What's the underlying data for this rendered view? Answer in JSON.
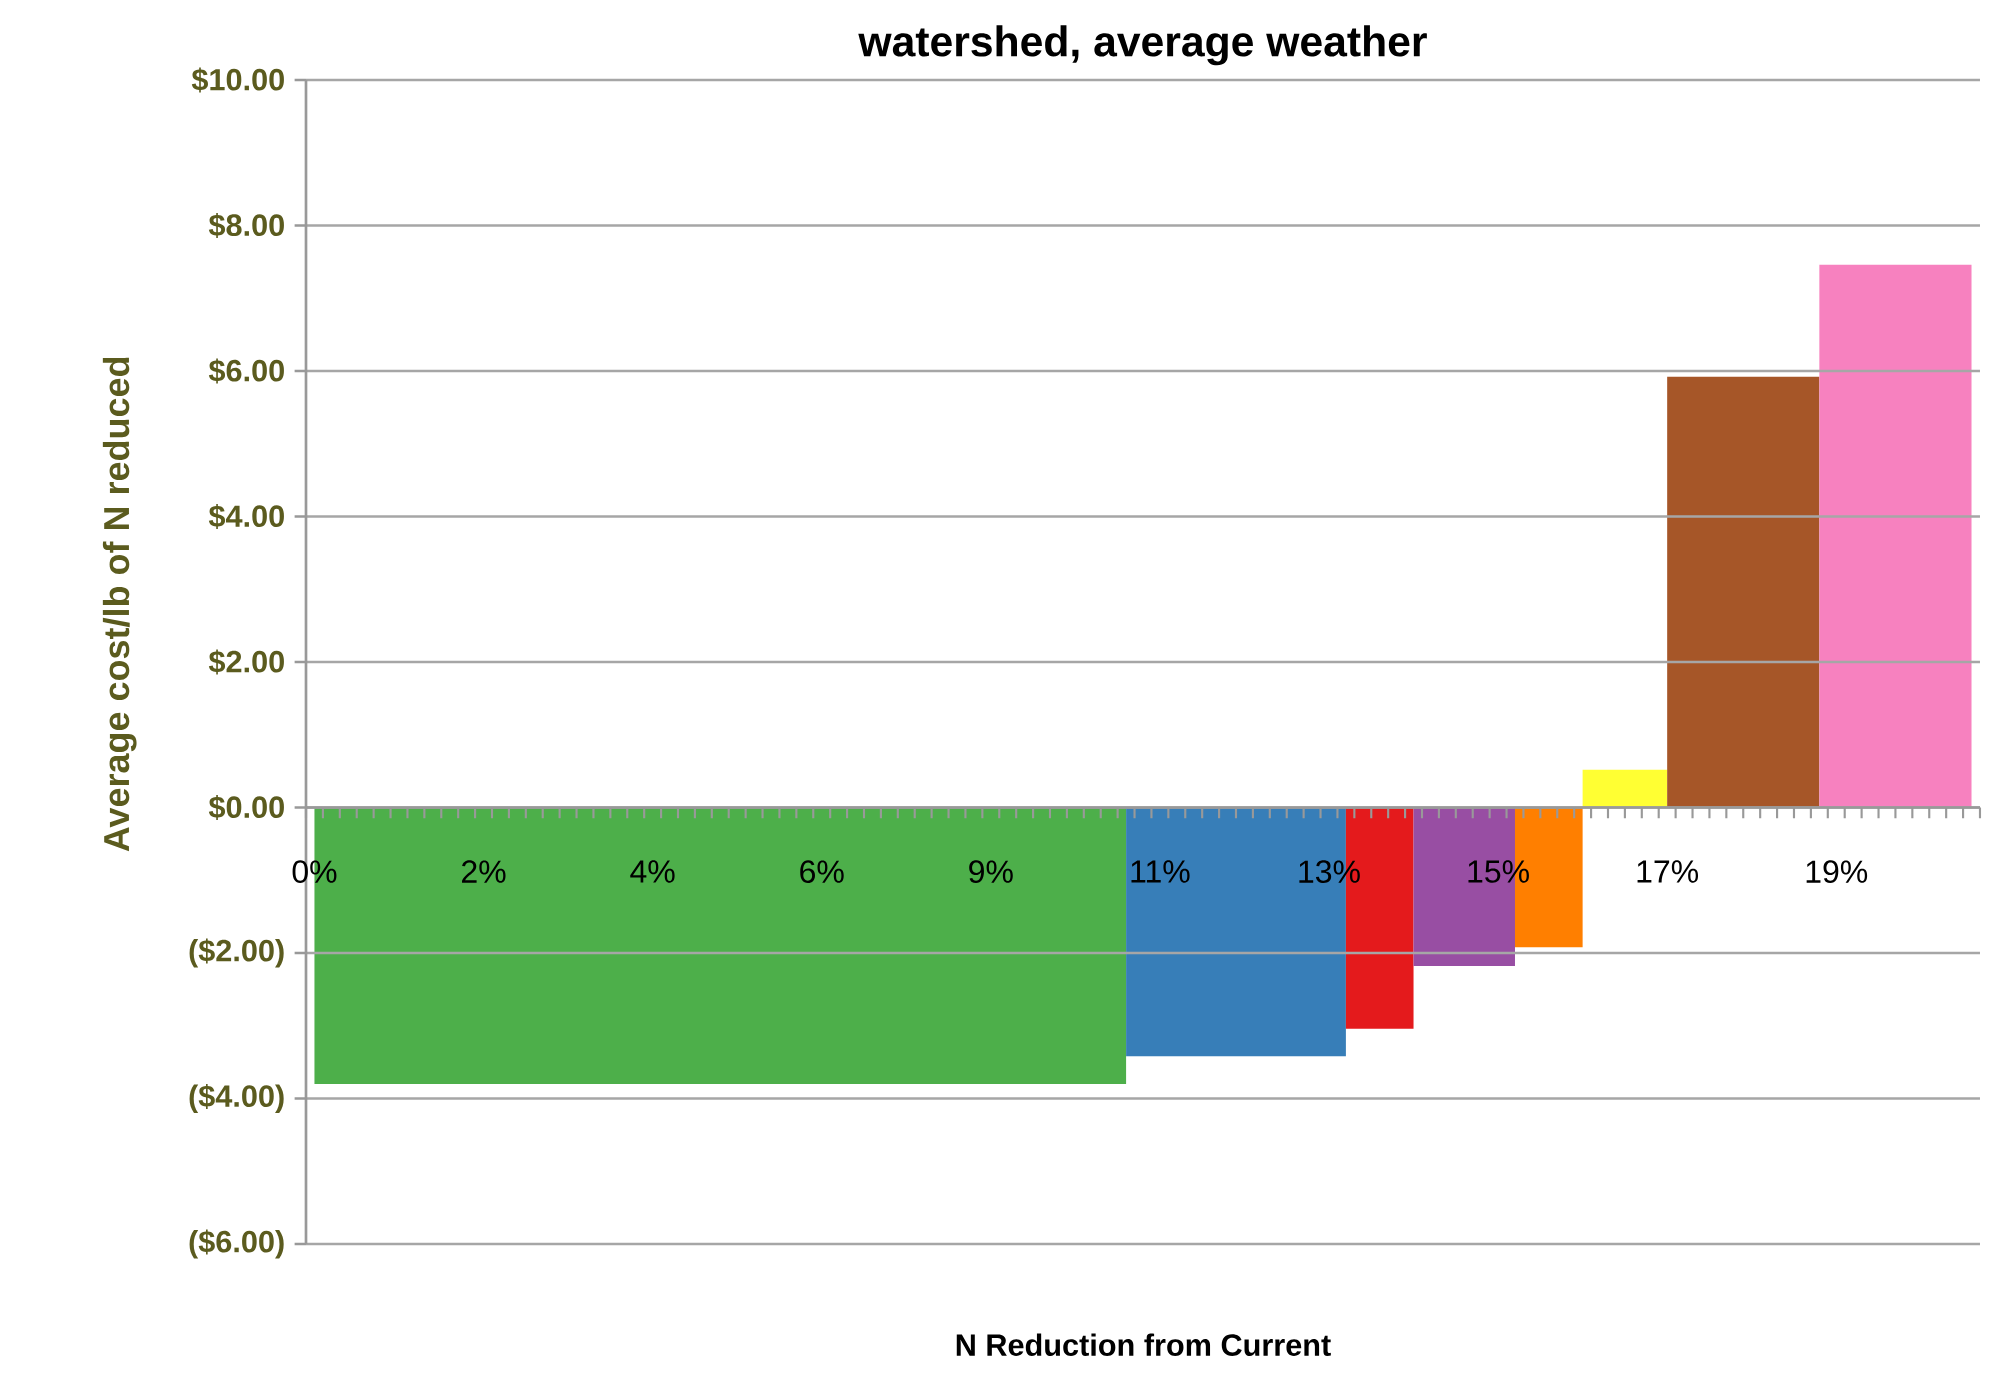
{
  "chart_data": {
    "type": "area",
    "title": "watershed, average weather",
    "xlabel": "N Reduction from Current",
    "ylabel": "Average cost/lb of N reduced",
    "categories": [
      "0%",
      null,
      null,
      null,
      null,
      null,
      null,
      null,
      null,
      null,
      "2%",
      null,
      null,
      null,
      null,
      null,
      null,
      null,
      null,
      null,
      "4%",
      null,
      null,
      null,
      null,
      null,
      null,
      null,
      null,
      null,
      "6%",
      null,
      null,
      null,
      null,
      null,
      null,
      null,
      null,
      null,
      "9%",
      null,
      null,
      null,
      null,
      null,
      null,
      null,
      null,
      null,
      "11%",
      null,
      null,
      null,
      null,
      null,
      null,
      null,
      null,
      null,
      "13%",
      null,
      null,
      null,
      null,
      null,
      null,
      null,
      null,
      null,
      "15%",
      null,
      null,
      null,
      null,
      null,
      null,
      null,
      null,
      null,
      "17%",
      null,
      null,
      null,
      null,
      null,
      null,
      null,
      null,
      null,
      "19%",
      null,
      null,
      null,
      null,
      null,
      null,
      null,
      null
    ],
    "ylim": [
      -6,
      10
    ],
    "yticks": [
      {
        "value": -6,
        "label": "($6.00)"
      },
      {
        "value": -4,
        "label": "($4.00)"
      },
      {
        "value": -2,
        "label": "($2.00)"
      },
      {
        "value": 0,
        "label": "$0.00"
      },
      {
        "value": 2,
        "label": "$2.00"
      },
      {
        "value": 4,
        "label": "$4.00"
      },
      {
        "value": 6,
        "label": "$6.00"
      },
      {
        "value": 8,
        "label": "$8.00"
      },
      {
        "value": 10,
        "label": "$10.00"
      }
    ],
    "grid": "y",
    "series": [
      {
        "color": "#4daf4a",
        "values": [
          -3.8,
          -3.8,
          -3.8,
          -3.8,
          -3.8,
          -3.8,
          -3.8,
          -3.8,
          -3.8,
          -3.8,
          -3.8,
          -3.8,
          -3.8,
          -3.8,
          -3.8,
          -3.8,
          -3.8,
          -3.8,
          -3.8,
          -3.8,
          -3.8,
          -3.8,
          -3.8,
          -3.8,
          -3.8,
          -3.8,
          -3.8,
          -3.8,
          -3.8,
          -3.8,
          -3.8,
          -3.8,
          -3.8,
          -3.8,
          -3.8,
          -3.8,
          -3.8,
          -3.8,
          -3.8,
          -3.8,
          -3.8,
          -3.8,
          -3.8,
          -3.8,
          -3.8,
          -3.8,
          -3.8,
          -3.8,
          -3.8,
          null,
          null,
          null,
          null,
          null,
          null,
          null,
          null,
          null,
          null,
          null,
          null,
          null,
          null,
          null,
          null,
          null,
          null,
          null,
          null,
          null,
          null,
          null,
          null,
          null,
          null,
          null,
          null,
          null,
          null,
          null,
          null,
          null,
          null,
          null,
          null,
          null,
          null,
          null,
          null,
          null,
          null,
          null,
          null,
          null,
          null,
          null,
          null,
          null,
          null
        ]
      },
      {
        "color": "#377eb8",
        "values": [
          null,
          null,
          null,
          null,
          null,
          null,
          null,
          null,
          null,
          null,
          null,
          null,
          null,
          null,
          null,
          null,
          null,
          null,
          null,
          null,
          null,
          null,
          null,
          null,
          null,
          null,
          null,
          null,
          null,
          null,
          null,
          null,
          null,
          null,
          null,
          null,
          null,
          null,
          null,
          null,
          null,
          null,
          null,
          null,
          null,
          null,
          null,
          null,
          -3.42,
          -3.42,
          -3.42,
          -3.42,
          -3.42,
          -3.42,
          -3.42,
          -3.42,
          -3.42,
          -3.42,
          -3.42,
          -3.42,
          -3.42,
          -3.42,
          null,
          null,
          null,
          null,
          null,
          null,
          null,
          null,
          null,
          null,
          null,
          null,
          null,
          null,
          null,
          null,
          null,
          null,
          null,
          null,
          null,
          null,
          null,
          null,
          null,
          null,
          null,
          null,
          null,
          null,
          null,
          null,
          null,
          null,
          null,
          null,
          null
        ]
      },
      {
        "color": "#e41a1c",
        "values": [
          null,
          null,
          null,
          null,
          null,
          null,
          null,
          null,
          null,
          null,
          null,
          null,
          null,
          null,
          null,
          null,
          null,
          null,
          null,
          null,
          null,
          null,
          null,
          null,
          null,
          null,
          null,
          null,
          null,
          null,
          null,
          null,
          null,
          null,
          null,
          null,
          null,
          null,
          null,
          null,
          null,
          null,
          null,
          null,
          null,
          null,
          null,
          null,
          null,
          null,
          null,
          null,
          null,
          null,
          null,
          null,
          null,
          null,
          null,
          null,
          null,
          -3.04,
          -3.04,
          -3.04,
          -3.04,
          -3.04,
          null,
          null,
          null,
          null,
          null,
          null,
          null,
          null,
          null,
          null,
          null,
          null,
          null,
          null,
          null,
          null,
          null,
          null,
          null,
          null,
          null,
          null,
          null,
          null,
          null,
          null,
          null,
          null,
          null,
          null,
          null,
          null,
          null
        ]
      },
      {
        "color": "#984ea3",
        "values": [
          null,
          null,
          null,
          null,
          null,
          null,
          null,
          null,
          null,
          null,
          null,
          null,
          null,
          null,
          null,
          null,
          null,
          null,
          null,
          null,
          null,
          null,
          null,
          null,
          null,
          null,
          null,
          null,
          null,
          null,
          null,
          null,
          null,
          null,
          null,
          null,
          null,
          null,
          null,
          null,
          null,
          null,
          null,
          null,
          null,
          null,
          null,
          null,
          null,
          null,
          null,
          null,
          null,
          null,
          null,
          null,
          null,
          null,
          null,
          null,
          null,
          null,
          null,
          null,
          null,
          -2.18,
          -2.18,
          -2.18,
          -2.18,
          -2.18,
          -2.18,
          -2.18,
          null,
          null,
          null,
          null,
          null,
          null,
          null,
          null,
          null,
          null,
          null,
          null,
          null,
          null,
          null,
          null,
          null,
          null,
          null,
          null,
          null,
          null,
          null,
          null,
          null,
          null,
          null
        ]
      },
      {
        "color": "#ff7f00",
        "values": [
          null,
          null,
          null,
          null,
          null,
          null,
          null,
          null,
          null,
          null,
          null,
          null,
          null,
          null,
          null,
          null,
          null,
          null,
          null,
          null,
          null,
          null,
          null,
          null,
          null,
          null,
          null,
          null,
          null,
          null,
          null,
          null,
          null,
          null,
          null,
          null,
          null,
          null,
          null,
          null,
          null,
          null,
          null,
          null,
          null,
          null,
          null,
          null,
          null,
          null,
          null,
          null,
          null,
          null,
          null,
          null,
          null,
          null,
          null,
          null,
          null,
          null,
          null,
          null,
          null,
          null,
          null,
          null,
          null,
          null,
          null,
          -1.92,
          -1.92,
          -1.92,
          -1.92,
          -1.92,
          null,
          null,
          null,
          null,
          null,
          null,
          null,
          null,
          null,
          null,
          null,
          null,
          null,
          null,
          null,
          null,
          null,
          null,
          null,
          null,
          null,
          null,
          null
        ]
      },
      {
        "color": "#ffff33",
        "values": [
          null,
          null,
          null,
          null,
          null,
          null,
          null,
          null,
          null,
          null,
          null,
          null,
          null,
          null,
          null,
          null,
          null,
          null,
          null,
          null,
          null,
          null,
          null,
          null,
          null,
          null,
          null,
          null,
          null,
          null,
          null,
          null,
          null,
          null,
          null,
          null,
          null,
          null,
          null,
          null,
          null,
          null,
          null,
          null,
          null,
          null,
          null,
          null,
          null,
          null,
          null,
          null,
          null,
          null,
          null,
          null,
          null,
          null,
          null,
          null,
          null,
          null,
          null,
          null,
          null,
          null,
          null,
          null,
          null,
          null,
          null,
          null,
          null,
          null,
          null,
          0.52,
          0.52,
          0.52,
          0.52,
          0.52,
          0.52,
          null,
          null,
          null,
          null,
          null,
          null,
          null,
          null,
          null,
          null,
          null,
          null,
          null,
          null,
          null,
          null,
          null,
          null
        ]
      },
      {
        "color": "#a65628",
        "values": [
          null,
          null,
          null,
          null,
          null,
          null,
          null,
          null,
          null,
          null,
          null,
          null,
          null,
          null,
          null,
          null,
          null,
          null,
          null,
          null,
          null,
          null,
          null,
          null,
          null,
          null,
          null,
          null,
          null,
          null,
          null,
          null,
          null,
          null,
          null,
          null,
          null,
          null,
          null,
          null,
          null,
          null,
          null,
          null,
          null,
          null,
          null,
          null,
          null,
          null,
          null,
          null,
          null,
          null,
          null,
          null,
          null,
          null,
          null,
          null,
          null,
          null,
          null,
          null,
          null,
          null,
          null,
          null,
          null,
          null,
          null,
          null,
          null,
          null,
          null,
          null,
          null,
          null,
          null,
          null,
          5.92,
          5.92,
          5.92,
          5.92,
          5.92,
          5.92,
          5.92,
          5.92,
          5.92,
          5.92,
          null,
          null,
          null,
          null,
          null,
          null,
          null,
          null,
          null
        ]
      },
      {
        "color": "#f781bf",
        "values": [
          null,
          null,
          null,
          null,
          null,
          null,
          null,
          null,
          null,
          null,
          null,
          null,
          null,
          null,
          null,
          null,
          null,
          null,
          null,
          null,
          null,
          null,
          null,
          null,
          null,
          null,
          null,
          null,
          null,
          null,
          null,
          null,
          null,
          null,
          null,
          null,
          null,
          null,
          null,
          null,
          null,
          null,
          null,
          null,
          null,
          null,
          null,
          null,
          null,
          null,
          null,
          null,
          null,
          null,
          null,
          null,
          null,
          null,
          null,
          null,
          null,
          null,
          null,
          null,
          null,
          null,
          null,
          null,
          null,
          null,
          null,
          null,
          null,
          null,
          null,
          null,
          null,
          null,
          null,
          null,
          null,
          null,
          null,
          null,
          null,
          null,
          null,
          null,
          null,
          7.46,
          7.46,
          7.46,
          7.46,
          7.46,
          7.46,
          7.46,
          7.46,
          7.46,
          7.46
        ]
      }
    ]
  }
}
